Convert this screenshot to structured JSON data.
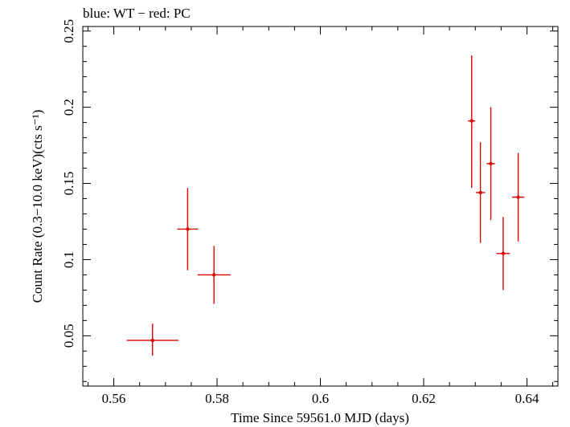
{
  "chart_data": {
    "type": "scatter",
    "title": "blue: WT − red: PC",
    "xlabel": "Time Since 59561.0 MJD (days)",
    "ylabel": "Count Rate (0.3−10.0 keV)(cts s⁻¹)",
    "xlim": [
      0.554,
      0.646
    ],
    "ylim": [
      0.017,
      0.253
    ],
    "xticks": [
      0.56,
      0.58,
      0.6,
      0.62,
      0.64
    ],
    "xtick_labels": [
      "0.56",
      "0.58",
      "0.6",
      "0.62",
      "0.64"
    ],
    "yticks": [
      0.05,
      0.1,
      0.15,
      0.2,
      0.25
    ],
    "ytick_labels": [
      "0.05",
      "0.1",
      "0.15",
      "0.2",
      "0.25"
    ],
    "grid": false,
    "series": [
      {
        "color": "#e00000",
        "points": [
          {
            "x": 0.5675,
            "y": 0.047,
            "xerr": 0.005,
            "yerr_lo": 0.01,
            "yerr_hi": 0.011
          },
          {
            "x": 0.5743,
            "y": 0.12,
            "xerr": 0.002,
            "yerr_lo": 0.027,
            "yerr_hi": 0.027
          },
          {
            "x": 0.5794,
            "y": 0.09,
            "xerr": 0.0032,
            "yerr_lo": 0.019,
            "yerr_hi": 0.019
          },
          {
            "x": 0.6293,
            "y": 0.191,
            "xerr": 0.0007,
            "yerr_lo": 0.044,
            "yerr_hi": 0.043
          },
          {
            "x": 0.631,
            "y": 0.144,
            "xerr": 0.0009,
            "yerr_lo": 0.033,
            "yerr_hi": 0.033
          },
          {
            "x": 0.633,
            "y": 0.163,
            "xerr": 0.0008,
            "yerr_lo": 0.037,
            "yerr_hi": 0.037
          },
          {
            "x": 0.6354,
            "y": 0.104,
            "xerr": 0.0013,
            "yerr_lo": 0.024,
            "yerr_hi": 0.024
          },
          {
            "x": 0.6383,
            "y": 0.141,
            "xerr": 0.0012,
            "yerr_lo": 0.029,
            "yerr_hi": 0.029
          }
        ]
      }
    ]
  }
}
